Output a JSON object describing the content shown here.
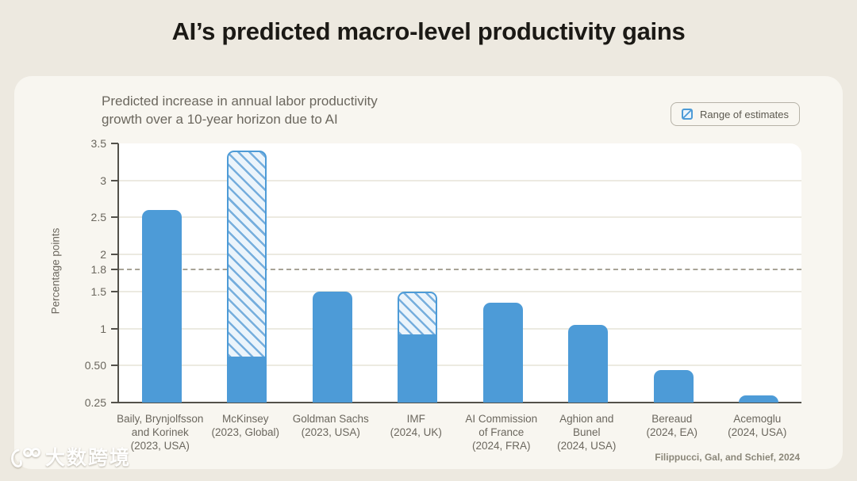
{
  "title": "AI’s predicted macro-level productivity gains",
  "card": {
    "subtitle_lines": [
      "Predicted increase in annual labor productivity",
      "growth over a 10-year horizon due to AI"
    ],
    "legend": {
      "label": "Range of estimates",
      "swatch": "blue-hatched-square"
    },
    "source": "Filippucci, Gal, and Schief, 2024"
  },
  "watermark": {
    "logo": "k100-swirl-logo",
    "text": "大数跨境"
  },
  "colors": {
    "page_bg": "#ede9e0",
    "card_bg": "#f8f6f0",
    "plot_bg": "#ffffff",
    "bar_blue": "#4d9bd7",
    "hatch_fill": "#ebf4fb",
    "hatch_line": "#76aedd",
    "grid_line": "#eceae1",
    "dashed_line": "#a7a396",
    "axis_line": "#53514a",
    "text_dark": "#1b1915",
    "text_gray": "#6b675e",
    "legend_border": "#b6b2a7",
    "source_text": "#8b8779"
  },
  "chart_data": {
    "type": "bar",
    "title": "Predicted increase in annual labor productivity growth over a 10-year horizon due to AI",
    "xlabel": "",
    "ylabel": "Percentage points",
    "legend_entries": [
      "Range of estimates"
    ],
    "legend_position": "top-right",
    "grid": "horizontal",
    "reference_line": {
      "value": 1.8,
      "style": "dashed"
    },
    "axis_map": {
      "baseline_value": 0.25,
      "compress_below": 0.5,
      "top_value": 3.5
    },
    "y_ticks": [
      {
        "label": "3.5",
        "value": 3.5,
        "grid": "none"
      },
      {
        "label": "3",
        "value": 3.0,
        "grid": "solid"
      },
      {
        "label": "2.5",
        "value": 2.5,
        "grid": "solid"
      },
      {
        "label": "2",
        "value": 2.0,
        "grid": "solid"
      },
      {
        "label": "1.8",
        "value": 1.8,
        "grid": "dashed"
      },
      {
        "label": "1.5",
        "value": 1.5,
        "grid": "solid"
      },
      {
        "label": "1",
        "value": 1.0,
        "grid": "solid"
      },
      {
        "label": "0.50",
        "value": 0.5,
        "grid": "solid"
      },
      {
        "label": "0.25",
        "value": 0.25,
        "grid": "baseline"
      }
    ],
    "bars": [
      {
        "id": "baily-brynjolfsson-korinek",
        "label": "Baily, Brynjolfsson and Korinek (2023, USA)",
        "label_lines": [
          "Baily, Brynjolfsson",
          "and Korinek",
          "(2023, USA)"
        ],
        "value": 2.6,
        "range_high": null
      },
      {
        "id": "mckinsey",
        "label": "McKinsey (2023, Global)",
        "label_lines": [
          "McKinsey",
          "(2023, Global)"
        ],
        "value": 0.6,
        "range_high": 3.4
      },
      {
        "id": "goldman-sachs",
        "label": "Goldman Sachs (2023, USA)",
        "label_lines": [
          "Goldman Sachs",
          "(2023, USA)"
        ],
        "value": 1.5,
        "range_high": null
      },
      {
        "id": "imf",
        "label": "IMF (2024, UK)",
        "label_lines": [
          "IMF",
          "(2024, UK)"
        ],
        "value": 0.9,
        "range_high": 1.5
      },
      {
        "id": "ai-commission-of-france",
        "label": "AI Commission of France (2024, FRA)",
        "label_lines": [
          "AI Commission",
          "of France",
          "(2024, FRA)"
        ],
        "value": 1.35,
        "range_high": null
      },
      {
        "id": "aghion-bunel",
        "label": "Aghion and Bunel (2024, USA)",
        "label_lines": [
          "Aghion and",
          "Bunel",
          "(2024, USA)"
        ],
        "value": 1.05,
        "range_high": null
      },
      {
        "id": "bereaud",
        "label": "Bereaud (2024, EA)",
        "label_lines": [
          "Bereaud",
          "(2024, EA)"
        ],
        "value": 0.47,
        "range_high": null
      },
      {
        "id": "acemoglu",
        "label": "Acemoglu (2024, USA)",
        "label_lines": [
          "Acemoglu",
          "(2024, USA)"
        ],
        "value": 0.3,
        "range_high": null
      }
    ]
  }
}
